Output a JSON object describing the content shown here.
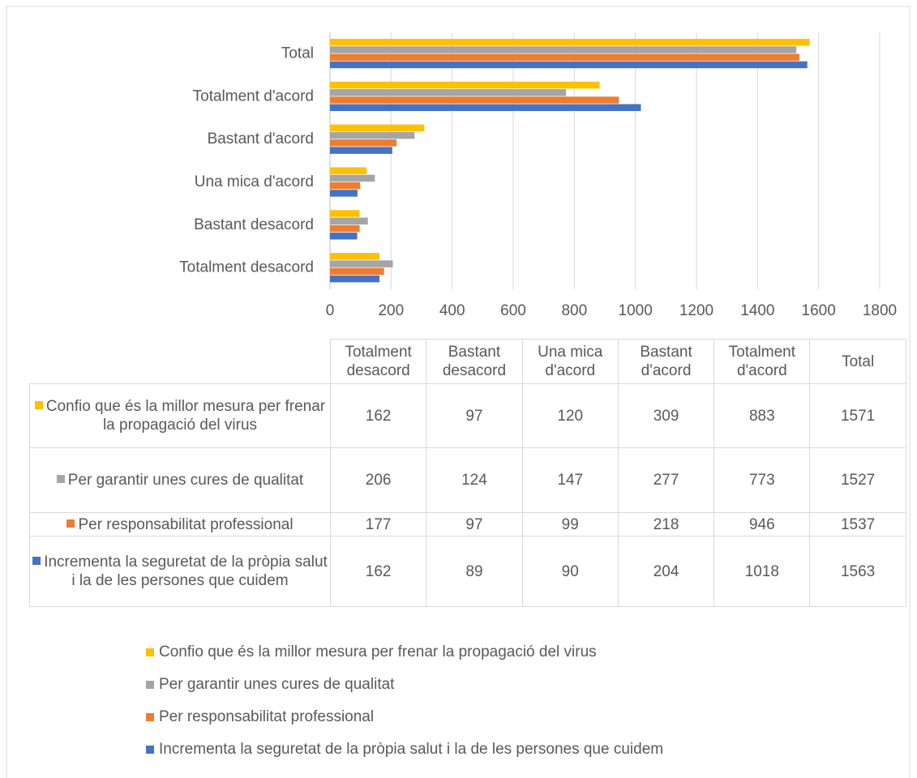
{
  "chart_data": {
    "type": "bar",
    "orientation": "horizontal",
    "categories": [
      "Totalment desacord",
      "Bastant desacord",
      "Una mica d'acord",
      "Bastant d'acord",
      "Totalment d'acord",
      "Total"
    ],
    "series": [
      {
        "name": "Confio que és la millor mesura per frenar la propagació del virus",
        "color": "#ffc000",
        "values": [
          162,
          97,
          120,
          309,
          883,
          1571
        ]
      },
      {
        "name": "Per garantir unes cures de qualitat",
        "color": "#a5a5a5",
        "values": [
          206,
          124,
          147,
          277,
          773,
          1527
        ]
      },
      {
        "name": "Per responsabilitat professional",
        "color": "#ed7d31",
        "values": [
          177,
          97,
          99,
          218,
          946,
          1537
        ]
      },
      {
        "name": "Incrementa la seguretat de la pròpia salut i la de les persones que cuidem",
        "color": "#4472c4",
        "values": [
          162,
          89,
          90,
          204,
          1018,
          1563
        ]
      }
    ],
    "xlim": [
      0,
      1800
    ],
    "xticks": [
      0,
      200,
      400,
      600,
      800,
      1000,
      1200,
      1400,
      1600,
      1800
    ],
    "grid": true,
    "data_table": true,
    "legend": "bottom"
  }
}
